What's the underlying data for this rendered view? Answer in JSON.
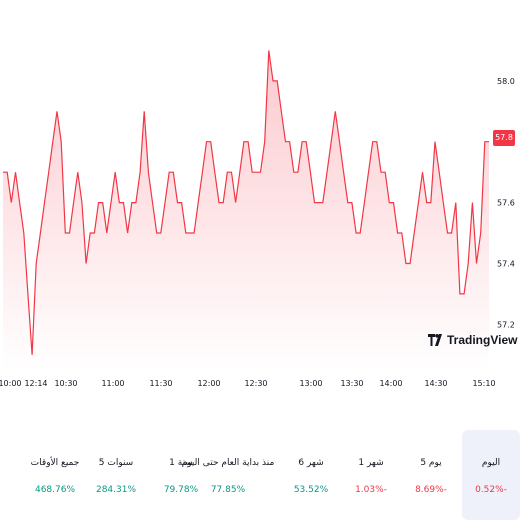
{
  "chart_data": {
    "type": "area",
    "x_ticks": [
      "10:00",
      "12:14",
      "10:30",
      "11:00",
      "11:30",
      "12:00",
      "12:30",
      "13:00",
      "13:30",
      "14:00",
      "14:30",
      "15:10"
    ],
    "y_ticks": [
      "58.0",
      "57.8",
      "57.6",
      "57.4",
      "57.2"
    ],
    "ylim": [
      57.05,
      58.2
    ],
    "current_price": "57.8",
    "series": [
      {
        "values": [
          57.7,
          57.7,
          57.6,
          57.7,
          57.6,
          57.5,
          57.3,
          57.1,
          57.4,
          57.5,
          57.6,
          57.7,
          57.8,
          57.9,
          57.8,
          57.5,
          57.5,
          57.6,
          57.7,
          57.6,
          57.4,
          57.5,
          57.5,
          57.6,
          57.6,
          57.5,
          57.6,
          57.7,
          57.6,
          57.6,
          57.5,
          57.6,
          57.6,
          57.7,
          57.9,
          57.7,
          57.6,
          57.5,
          57.5,
          57.6,
          57.7,
          57.7,
          57.6,
          57.6,
          57.5,
          57.5,
          57.5,
          57.6,
          57.7,
          57.8,
          57.8,
          57.7,
          57.6,
          57.6,
          57.7,
          57.7,
          57.6,
          57.7,
          57.8,
          57.8,
          57.7,
          57.7,
          57.7,
          57.8,
          58.1,
          58.0,
          58.0,
          57.9,
          57.8,
          57.8,
          57.7,
          57.7,
          57.8,
          57.8,
          57.7,
          57.6,
          57.6,
          57.6,
          57.7,
          57.8,
          57.9,
          57.8,
          57.7,
          57.6,
          57.6,
          57.5,
          57.5,
          57.6,
          57.7,
          57.8,
          57.8,
          57.7,
          57.7,
          57.6,
          57.6,
          57.5,
          57.5,
          57.4,
          57.4,
          57.5,
          57.6,
          57.7,
          57.6,
          57.6,
          57.8,
          57.7,
          57.6,
          57.5,
          57.5,
          57.6,
          57.3,
          57.3,
          57.4,
          57.6,
          57.4,
          57.5,
          57.8,
          57.8
        ]
      }
    ],
    "colors": {
      "line": "#f23645",
      "fill_top": "#fcc9ce",
      "fill_bottom": "#ffffff"
    }
  },
  "brand": {
    "name": "TradingView"
  },
  "performance": [
    {
      "label": "اليوم",
      "value": "0.52%-",
      "dir": "neg",
      "active": true
    },
    {
      "label": "5 يوم",
      "value": "8.69%-",
      "dir": "neg",
      "active": false
    },
    {
      "label": "1 شهر",
      "value": "1.03%-",
      "dir": "neg",
      "active": false
    },
    {
      "label": "6 شهر",
      "value": "53.52%",
      "dir": "pos",
      "active": false
    },
    {
      "label": "منذ بداية العام حتى اليوم",
      "value": "77.85%",
      "dir": "pos",
      "active": false
    },
    {
      "label": "1 سنة",
      "value": "79.78%",
      "dir": "pos",
      "active": false
    },
    {
      "label": "5 سنوات",
      "value": "284.31%",
      "dir": "pos",
      "active": false
    },
    {
      "label": "جميع الأوقات",
      "value": "468.76%",
      "dir": "pos",
      "active": false
    }
  ]
}
